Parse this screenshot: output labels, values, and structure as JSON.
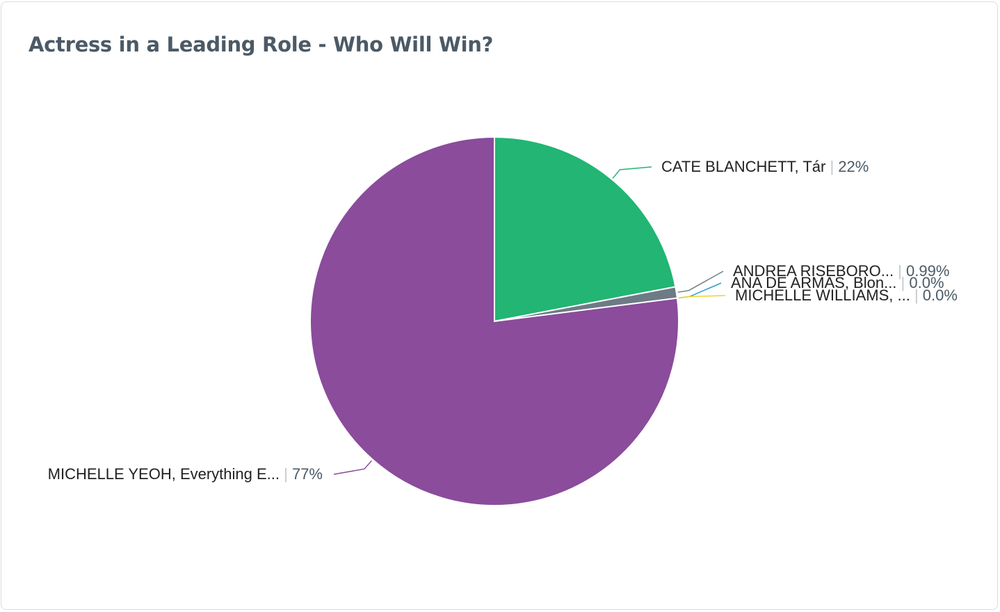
{
  "chart_data": {
    "type": "pie",
    "title": "Actress in a Leading Role - Who Will Win?",
    "slices": [
      {
        "label": "CATE BLANCHETT, Tár",
        "pct_label": "22%",
        "value": 22,
        "color": "#22b573"
      },
      {
        "label": "ANDREA RISEBORO...",
        "pct_label": "0.99%",
        "value": 0.99,
        "color": "#6d7b86"
      },
      {
        "label": "ANA DE ARMAS, Blon...",
        "pct_label": "0.0%",
        "value": 0.0,
        "color": "#2e9bd6"
      },
      {
        "label": "MICHELLE WILLIAMS, ...",
        "pct_label": "0.0%",
        "value": 0.0,
        "color": "#f1d32b"
      },
      {
        "label": "MICHELLE YEOH, Everything E...",
        "pct_label": "77%",
        "value": 77,
        "color": "#8a4c9b"
      }
    ]
  }
}
